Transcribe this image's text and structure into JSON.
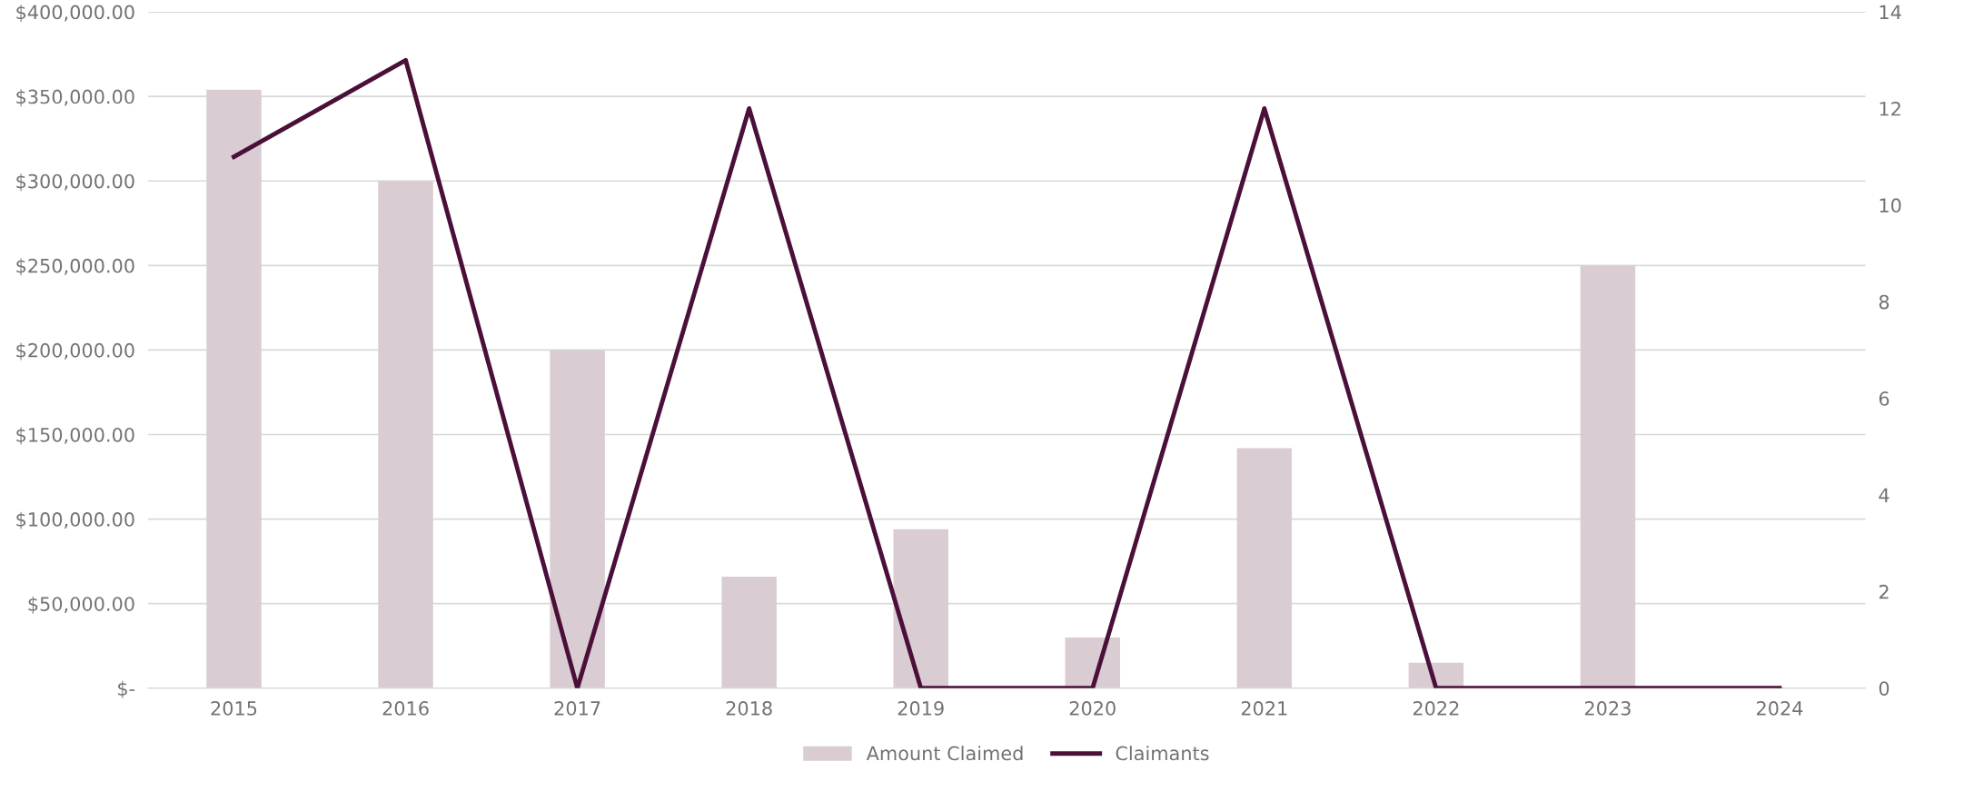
{
  "chart_data": {
    "type": "bar",
    "categories": [
      "2015",
      "2016",
      "2017",
      "2018",
      "2019",
      "2020",
      "2021",
      "2022",
      "2023",
      "2024"
    ],
    "series": [
      {
        "name": "Amount Claimed",
        "color": "#d9cdd3",
        "values": [
          354000,
          300000,
          200000,
          66000,
          94000,
          30000,
          142000,
          15000,
          250000,
          null
        ]
      },
      {
        "name": "Claimants",
        "type": "line",
        "axis": "y2",
        "color": "#4b1039",
        "values": [
          11,
          13,
          0,
          12,
          0,
          0,
          12,
          0,
          0,
          0
        ]
      }
    ],
    "ylim": [
      0,
      400000
    ],
    "yticks": [
      {
        "value": 0,
        "label": "$-"
      },
      {
        "value": 50000,
        "label": "$50,000.00"
      },
      {
        "value": 100000,
        "label": "$100,000.00"
      },
      {
        "value": 150000,
        "label": "$150,000.00"
      },
      {
        "value": 200000,
        "label": "$200,000.00"
      },
      {
        "value": 250000,
        "label": "$250,000.00"
      },
      {
        "value": 300000,
        "label": "$300,000.00"
      },
      {
        "value": 350000,
        "label": "$350,000.00"
      },
      {
        "value": 400000,
        "label": "$400,000.00"
      }
    ],
    "y2lim": [
      0,
      14
    ],
    "y2ticks": [
      0,
      2,
      4,
      6,
      8,
      10,
      12,
      14
    ],
    "grid": "y",
    "legend": "bottom",
    "marker": "none",
    "line_style": "solid"
  }
}
